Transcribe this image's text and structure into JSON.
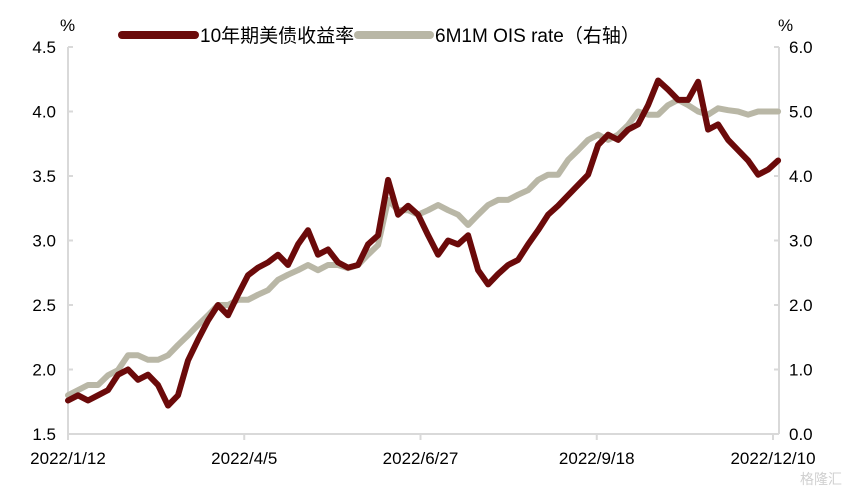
{
  "chart_data": {
    "type": "line",
    "title": "",
    "left_unit": "%",
    "right_unit": "%",
    "left_ylim": [
      1.5,
      4.5
    ],
    "right_ylim": [
      0.0,
      6.0
    ],
    "left_ticks": [
      "1.5",
      "2.0",
      "2.5",
      "3.0",
      "3.5",
      "4.0",
      "4.5"
    ],
    "right_ticks": [
      "0.0",
      "1.0",
      "2.0",
      "3.0",
      "4.0",
      "5.0",
      "6.0"
    ],
    "x_tick_labels": [
      "2022/1/12",
      "2022/4/5",
      "2022/6/27",
      "2022/9/18",
      "2022/12/10"
    ],
    "x_tick_days": [
      0,
      83,
      166,
      249,
      332
    ],
    "x_step_days": 4.71,
    "series": [
      {
        "name": "10年期美债收益率",
        "axis": "left",
        "color": "#6b0a0a",
        "values": [
          1.76,
          1.8,
          1.76,
          1.8,
          1.84,
          1.96,
          2.0,
          1.92,
          1.96,
          1.88,
          1.72,
          1.8,
          2.07,
          2.23,
          2.38,
          2.5,
          2.42,
          2.58,
          2.73,
          2.79,
          2.83,
          2.89,
          2.81,
          2.97,
          3.08,
          2.89,
          2.93,
          2.83,
          2.79,
          2.81,
          2.97,
          3.04,
          3.47,
          3.2,
          3.27,
          3.2,
          3.04,
          2.89,
          3.0,
          2.97,
          3.04,
          2.77,
          2.66,
          2.74,
          2.81,
          2.85,
          2.97,
          3.08,
          3.2,
          3.27,
          3.35,
          3.43,
          3.51,
          3.74,
          3.82,
          3.78,
          3.86,
          3.9,
          4.05,
          4.24,
          4.17,
          4.09,
          4.09,
          4.23,
          3.86,
          3.9,
          3.78,
          3.7,
          3.62,
          3.51,
          3.55,
          3.62
        ]
      },
      {
        "name": "6M1M OIS rate（右轴）",
        "axis": "right",
        "color": "#b9b7a6",
        "values": [
          0.6,
          0.68,
          0.76,
          0.76,
          0.91,
          0.99,
          1.22,
          1.22,
          1.15,
          1.15,
          1.22,
          1.38,
          1.53,
          1.69,
          1.84,
          2.0,
          2.0,
          2.08,
          2.08,
          2.16,
          2.23,
          2.39,
          2.47,
          2.54,
          2.62,
          2.54,
          2.62,
          2.62,
          2.57,
          2.62,
          2.78,
          2.93,
          3.63,
          3.47,
          3.47,
          3.4,
          3.47,
          3.55,
          3.47,
          3.4,
          3.24,
          3.4,
          3.55,
          3.63,
          3.63,
          3.71,
          3.78,
          3.94,
          4.02,
          4.02,
          4.25,
          4.4,
          4.56,
          4.64,
          4.56,
          4.64,
          4.79,
          5.0,
          4.95,
          4.95,
          5.1,
          5.18,
          5.1,
          5.0,
          4.95,
          5.05,
          5.02,
          5.0,
          4.95,
          5.0,
          5.0,
          5.0
        ]
      }
    ],
    "legend_position": "top",
    "grid": false
  },
  "watermark": "格隆汇"
}
